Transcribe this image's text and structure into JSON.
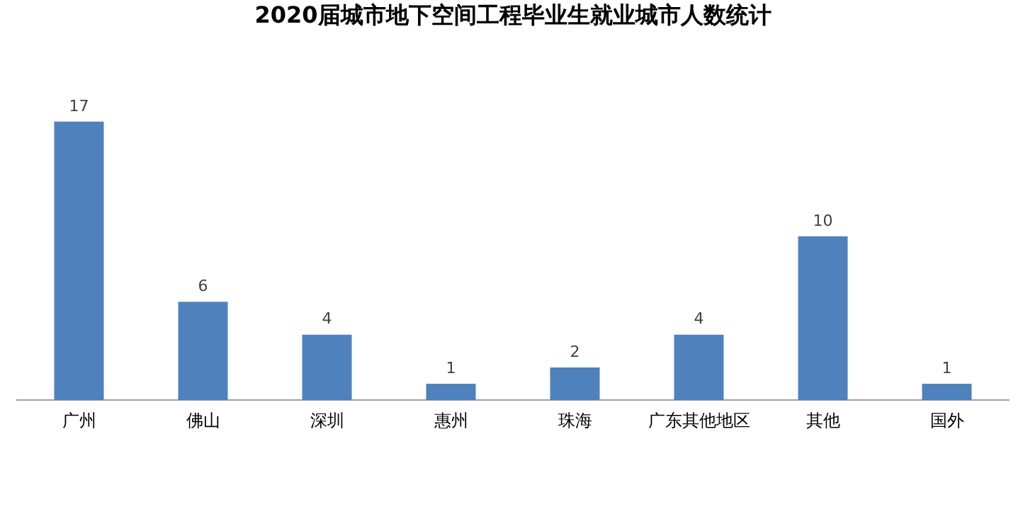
{
  "chart_data": {
    "type": "bar",
    "title": "2020届城市地下空间工程毕业生就业城市人数统计",
    "categories": [
      "广州",
      "佛山",
      "深圳",
      "惠州",
      "珠海",
      "广东其他地区",
      "其他",
      "国外"
    ],
    "values": [
      17,
      6,
      4,
      1,
      2,
      4,
      10,
      1
    ],
    "color": "#4f81bd",
    "data_labels": true,
    "grid": false,
    "legend": false,
    "tick_labels": "x"
  }
}
